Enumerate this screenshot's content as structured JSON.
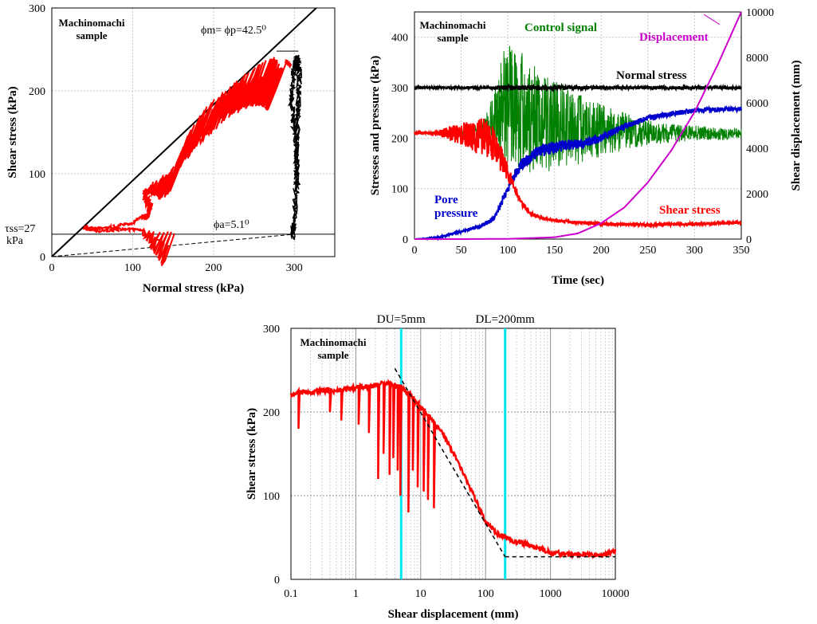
{
  "chart_data": [
    {
      "type": "line",
      "xlabel": "Normal stress (kPa)",
      "ylabel": "Shear stress (kPa)",
      "xlim": [
        0,
        350
      ],
      "ylim": [
        0,
        300
      ],
      "xticks": [
        "0",
        "100",
        "200",
        "300"
      ],
      "yticks": [
        "0",
        "100",
        "200",
        "300"
      ],
      "sample_label": [
        "Machinomachi",
        "sample"
      ],
      "annotations": {
        "peak_angle": "ϕm= ϕp=42.5⁰",
        "apparent_angle": "ϕa=5.1⁰",
        "steady_state": "τss=27",
        "steady_state_unit": "kPa"
      },
      "series": [
        {
          "color": "#ff0000",
          "x": [
            153,
            130,
            110,
            85,
            60,
            45,
            40,
            55,
            75,
            100,
            120,
            125,
            115,
            130,
            150,
            165,
            170,
            180,
            195,
            210,
            225,
            240,
            255,
            270,
            278,
            282,
            286,
            290,
            295
          ],
          "y": [
            30,
            31,
            32,
            33,
            31,
            33,
            35,
            33,
            36,
            40,
            55,
            65,
            80,
            95,
            110,
            130,
            150,
            165,
            185,
            200,
            215,
            228,
            236,
            240,
            242,
            244,
            241,
            236,
            230
          ]
        },
        {
          "color": "#000000",
          "x": [
            298,
            300,
            302,
            303,
            305,
            306,
            304,
            300,
            296,
            300,
            303,
            305
          ],
          "y": [
            25,
            40,
            90,
            140,
            180,
            220,
            240,
            230,
            190,
            150,
            120,
            80
          ]
        }
      ],
      "reference_lines": {
        "failure_line": {
          "x": [
            0,
            350
          ],
          "y": [
            0,
            321
          ]
        },
        "apparent_line": {
          "x": [
            0,
            300
          ],
          "y": [
            0,
            27
          ]
        },
        "steady_line": {
          "x": [
            0,
            350
          ],
          "y": [
            27,
            27
          ]
        }
      }
    },
    {
      "type": "line",
      "xlabel": "Time (sec)",
      "ylabel": "Stresses and pressure (kPa)",
      "y2label": "Shear displacement (mm)",
      "xlim": [
        0,
        350
      ],
      "ylim": [
        0,
        450
      ],
      "y2lim": [
        0,
        10000
      ],
      "xticks": [
        "0",
        "50",
        "100",
        "150",
        "200",
        "250",
        "300",
        "350"
      ],
      "yticks": [
        "0",
        "100",
        "200",
        "300",
        "400"
      ],
      "y2ticks": [
        "0",
        "2000",
        "4000",
        "6000",
        "8000",
        "10000"
      ],
      "sample_label": [
        "Machinomachi",
        "sample"
      ],
      "series": [
        {
          "name": "Control signal",
          "color": "#008000",
          "x": [
            0,
            20,
            40,
            60,
            75,
            85,
            95,
            105,
            115,
            125,
            135,
            150,
            170,
            190,
            210,
            230,
            250,
            270,
            300,
            330,
            350
          ],
          "y": [
            210,
            210,
            210,
            212,
            215,
            240,
            270,
            260,
            250,
            240,
            230,
            225,
            220,
            215,
            215,
            212,
            210,
            210,
            210,
            208,
            210
          ],
          "amplitude": [
            2,
            2,
            3,
            8,
            20,
            60,
            110,
            130,
            120,
            110,
            100,
            90,
            75,
            60,
            45,
            35,
            25,
            20,
            15,
            12,
            10
          ]
        },
        {
          "name": "Normal stress",
          "color": "#000000",
          "x": [
            0,
            50,
            80,
            100,
            130,
            160,
            200,
            250,
            300,
            350
          ],
          "y": [
            300,
            300,
            300,
            300,
            300,
            300,
            300,
            300,
            300,
            300
          ],
          "amplitude": [
            2,
            2,
            3,
            5,
            5,
            4,
            3,
            3,
            3,
            3
          ]
        },
        {
          "name": "Pore pressure",
          "color": "#0000cc",
          "x": [
            0,
            20,
            30,
            50,
            70,
            85,
            95,
            105,
            115,
            130,
            145,
            160,
            180,
            200,
            220,
            250,
            280,
            310,
            350
          ],
          "y": [
            0,
            2,
            5,
            15,
            25,
            40,
            80,
            120,
            150,
            170,
            180,
            185,
            190,
            200,
            220,
            240,
            250,
            256,
            258
          ],
          "amplitude": [
            0,
            1,
            2,
            3,
            4,
            5,
            8,
            10,
            12,
            12,
            12,
            10,
            10,
            8,
            6,
            5,
            5,
            4,
            4
          ]
        },
        {
          "name": "Shear stress",
          "color": "#ff0000",
          "x": [
            0,
            20,
            40,
            60,
            75,
            85,
            95,
            105,
            115,
            125,
            140,
            160,
            200,
            250,
            300,
            350
          ],
          "y": [
            210,
            210,
            210,
            205,
            200,
            190,
            150,
            110,
            70,
            50,
            40,
            35,
            30,
            28,
            30,
            33
          ],
          "amplitude": [
            2,
            3,
            15,
            30,
            40,
            35,
            25,
            10,
            6,
            4,
            3,
            3,
            3,
            3,
            3,
            3
          ]
        },
        {
          "name": "Displacement",
          "color": "#cc00cc",
          "axis": "right",
          "x": [
            0,
            50,
            100,
            150,
            175,
            200,
            225,
            250,
            275,
            300,
            325,
            350
          ],
          "y": [
            0,
            0,
            10,
            80,
            250,
            700,
            1400,
            2500,
            3900,
            5600,
            7700,
            10000
          ]
        }
      ],
      "labels": {
        "control": "Control signal",
        "displacement": "Displacement",
        "normal": "Normal stress",
        "pore": [
          "Pore",
          "pressure"
        ],
        "shear": "Shear stress"
      }
    },
    {
      "type": "line",
      "xscale": "log",
      "xlabel": "Shear displacement (mm)",
      "ylabel": "Shear stress (kPa)",
      "xlim": [
        0.1,
        10000
      ],
      "ylim": [
        0,
        300
      ],
      "xticks": [
        "0.1",
        "1",
        "10",
        "100",
        "1000",
        "10000"
      ],
      "yticks": [
        "0",
        "100",
        "200",
        "300"
      ],
      "sample_label": [
        "Machinomachi",
        "sample"
      ],
      "markers": [
        {
          "label": "DU=5mm",
          "x": 5,
          "color": "#00e5ee"
        },
        {
          "label": "DL=200mm",
          "x": 200,
          "color": "#00e5ee"
        }
      ],
      "series": [
        {
          "color": "#ff0000",
          "x": [
            0.1,
            0.15,
            0.2,
            0.3,
            0.5,
            0.8,
            1.2,
            2,
            3,
            4,
            5,
            7,
            10,
            15,
            20,
            30,
            50,
            80,
            100,
            150,
            200,
            300,
            500,
            800,
            1000,
            2000,
            3000,
            5000,
            7000,
            10000
          ],
          "y": [
            220,
            225,
            222,
            226,
            225,
            228,
            230,
            232,
            235,
            232,
            230,
            220,
            205,
            190,
            178,
            155,
            120,
            85,
            68,
            55,
            50,
            45,
            40,
            35,
            32,
            30,
            30,
            28,
            30,
            34
          ],
          "drops": [
            [
              0.13,
              180
            ],
            [
              0.4,
              200
            ],
            [
              0.6,
              190
            ],
            [
              1.1,
              185
            ],
            [
              1.6,
              175
            ],
            [
              2.2,
              120
            ],
            [
              2.7,
              150
            ],
            [
              3.3,
              125
            ],
            [
              3.8,
              145
            ],
            [
              4.4,
              130
            ],
            [
              4.9,
              100
            ],
            [
              6.5,
              80
            ],
            [
              7.5,
              130
            ],
            [
              9,
              110
            ],
            [
              11,
              105
            ],
            [
              13,
              95
            ],
            [
              16,
              85
            ]
          ]
        }
      ],
      "reference_lines": {
        "slope": {
          "x": [
            4,
            200
          ],
          "y": [
            252,
            27
          ]
        },
        "floor": {
          "x": [
            200,
            10000
          ],
          "y": [
            27,
            27
          ]
        }
      }
    }
  ]
}
